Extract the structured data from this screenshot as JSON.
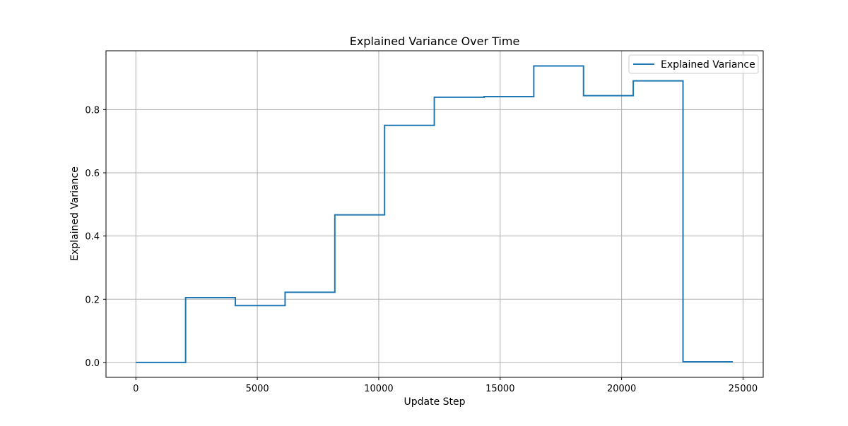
{
  "chart_data": {
    "type": "line",
    "title": "Explained Variance Over Time",
    "xlabel": "Update Step",
    "ylabel": "Explained Variance",
    "xlim": [
      -1230,
      25830
    ],
    "ylim": [
      -0.047,
      0.986
    ],
    "xticks": [
      0,
      5000,
      10000,
      15000,
      20000,
      25000
    ],
    "yticks": [
      0.0,
      0.2,
      0.4,
      0.6,
      0.8
    ],
    "xtick_labels": [
      "0",
      "5000",
      "10000",
      "15000",
      "20000",
      "25000"
    ],
    "ytick_labels": [
      "0.0",
      "0.2",
      "0.4",
      "0.6",
      "0.8"
    ],
    "grid": true,
    "legend_position": "top-right",
    "series": [
      {
        "name": "Explained Variance",
        "color": "#1f77b4",
        "step": "post",
        "x": [
          0,
          2048,
          4096,
          6144,
          8192,
          10240,
          12288,
          14336,
          16384,
          18432,
          20480,
          22528,
          24576
        ],
        "y": [
          0.0,
          0.205,
          0.18,
          0.222,
          0.467,
          0.75,
          0.839,
          0.841,
          0.938,
          0.844,
          0.891,
          0.002,
          0.002
        ]
      }
    ]
  }
}
